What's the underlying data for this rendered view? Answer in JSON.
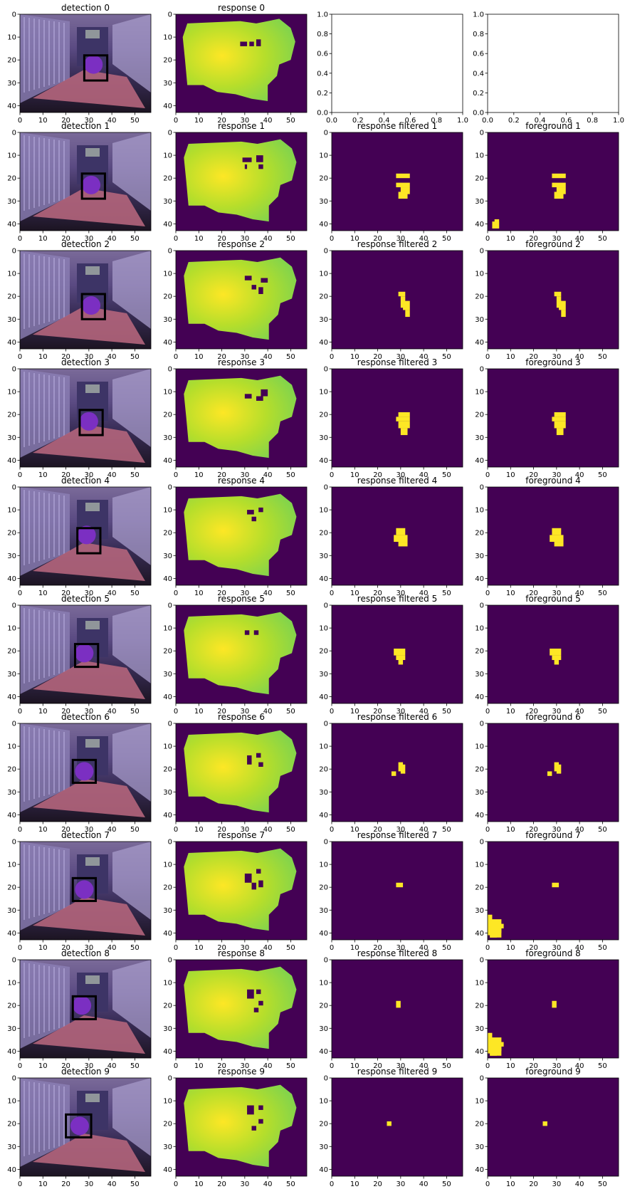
{
  "chart_data": {
    "type": "heatmap",
    "grid": {
      "rows": 10,
      "cols": 4
    },
    "image_axes": {
      "xlim": [
        0,
        57
      ],
      "ylim": [
        43,
        0
      ],
      "xticks": [
        0,
        10,
        20,
        30,
        40,
        50
      ],
      "yticks": [
        0,
        10,
        20,
        30,
        40
      ]
    },
    "empty_axes": {
      "xlim": [
        0,
        1
      ],
      "ylim": [
        0,
        1
      ],
      "xticks": [
        "0.0",
        "0.2",
        "0.4",
        "0.6",
        "0.8",
        "1.0"
      ],
      "yticks": [
        "0.0",
        "0.2",
        "0.4",
        "0.6",
        "0.8",
        "1.0"
      ]
    },
    "colors": {
      "background": "#440154",
      "foreground": "#fde725",
      "response_mid": "#b5de2b",
      "response_low": "#7fd34e",
      "box": "#000000",
      "ball": "#7b2fc2"
    },
    "panel_titles": {
      "detection": [
        "detection 0",
        "detection 1",
        "detection 2",
        "detection 3",
        "detection 4",
        "detection 5",
        "detection 6",
        "detection 7",
        "detection 8",
        "detection 9"
      ],
      "response": [
        "response 0",
        "response 1",
        "response 2",
        "response 3",
        "response 4",
        "response 5",
        "response 6",
        "response 7",
        "response 8",
        "response 9"
      ],
      "filtered": [
        "",
        "response filtered 1",
        "response filtered 2",
        "response filtered 3",
        "response filtered 4",
        "response filtered 5",
        "response filtered 6",
        "response filtered 7",
        "response filtered 8",
        "response filtered 9"
      ],
      "foreground": [
        "",
        "foreground  1",
        "foreground  2",
        "foreground  3",
        "foreground  4",
        "foreground  5",
        "foreground  6",
        "foreground  7",
        "foreground  8",
        "foreground  9"
      ]
    },
    "detection_boxes": [
      [
        28,
        18,
        38,
        29
      ],
      [
        27,
        18,
        37,
        29
      ],
      [
        27,
        19,
        37,
        30
      ],
      [
        26,
        18,
        36,
        29
      ],
      [
        25,
        18,
        35,
        29
      ],
      [
        24,
        17,
        34,
        27
      ],
      [
        23,
        16,
        33,
        26
      ],
      [
        23,
        16,
        33,
        26
      ],
      [
        23,
        16,
        33,
        26
      ],
      [
        20,
        16,
        31,
        26
      ]
    ],
    "ball_centers": [
      [
        32,
        22
      ],
      [
        31,
        23
      ],
      [
        31,
        24
      ],
      [
        30,
        23
      ],
      [
        29,
        21
      ],
      [
        28,
        21
      ],
      [
        28,
        21
      ],
      [
        28,
        21
      ],
      [
        27,
        20
      ],
      [
        26,
        21
      ]
    ],
    "foreground_blobs": [
      [],
      [
        [
          28,
          18,
          34,
          20
        ],
        [
          28,
          22,
          34,
          24
        ],
        [
          30,
          24,
          34,
          27
        ],
        [
          29,
          26,
          33,
          29
        ],
        [
          3,
          38,
          5,
          42
        ],
        [
          2,
          40,
          3,
          42
        ]
      ],
      [
        [
          29,
          18,
          32,
          20
        ],
        [
          30,
          20,
          32,
          25
        ],
        [
          31,
          22,
          34,
          26
        ],
        [
          32,
          26,
          34,
          29
        ]
      ],
      [
        [
          29,
          19,
          34,
          21
        ],
        [
          28,
          21,
          34,
          23
        ],
        [
          29,
          23,
          34,
          26
        ],
        [
          30,
          26,
          33,
          29
        ]
      ],
      [
        [
          28,
          18,
          32,
          21
        ],
        [
          27,
          21,
          33,
          24
        ],
        [
          29,
          24,
          33,
          26
        ]
      ],
      [
        [
          27,
          19,
          32,
          22
        ],
        [
          28,
          22,
          32,
          24
        ],
        [
          29,
          24,
          31,
          26
        ]
      ],
      [
        [
          29,
          17,
          31,
          21
        ],
        [
          30,
          18,
          32,
          22
        ],
        [
          26,
          21,
          28,
          23
        ]
      ],
      [
        [
          28,
          18,
          31,
          20
        ],
        [
          0,
          32,
          2,
          41
        ],
        [
          2,
          35,
          4,
          38
        ],
        [
          3,
          37,
          6,
          40
        ],
        [
          1,
          40,
          4,
          42
        ],
        [
          5,
          36,
          7,
          38
        ]
      ],
      [
        [
          28,
          18,
          30,
          21
        ],
        [
          0,
          32,
          2,
          41
        ],
        [
          2,
          35,
          4,
          38
        ],
        [
          3,
          37,
          6,
          40
        ],
        [
          1,
          40,
          4,
          42
        ],
        [
          5,
          36,
          7,
          38
        ]
      ],
      [
        [
          24,
          19,
          26,
          21
        ]
      ]
    ],
    "foreground_only_extra": [
      [],
      [
        [
          2,
          39,
          5,
          42
        ]
      ],
      [],
      [],
      [],
      [],
      [],
      [
        [
          1,
          34,
          6,
          42
        ]
      ],
      [
        [
          1,
          34,
          6,
          42
        ]
      ],
      []
    ],
    "response_holes": [
      [
        [
          28,
          12,
          31,
          14
        ],
        [
          32,
          12,
          34,
          14
        ],
        [
          35,
          11,
          37,
          14
        ]
      ],
      [
        [
          29,
          11,
          33,
          13
        ],
        [
          30,
          14,
          31,
          16
        ],
        [
          35,
          10,
          38,
          13
        ],
        [
          36,
          14,
          38,
          16
        ]
      ],
      [
        [
          30,
          11,
          33,
          13
        ],
        [
          33,
          15,
          35,
          17
        ],
        [
          37,
          12,
          40,
          14
        ],
        [
          36,
          16,
          38,
          19
        ]
      ],
      [
        [
          30,
          11,
          33,
          13
        ],
        [
          35,
          12,
          38,
          14
        ],
        [
          37,
          9,
          40,
          12
        ]
      ],
      [
        [
          31,
          10,
          34,
          12
        ],
        [
          36,
          9,
          38,
          11
        ],
        [
          33,
          13,
          35,
          15
        ]
      ],
      [
        [
          30,
          11,
          32,
          13
        ],
        [
          34,
          11,
          36,
          13
        ]
      ],
      [
        [
          31,
          14,
          33,
          18
        ],
        [
          35,
          13,
          37,
          15
        ],
        [
          36,
          17,
          38,
          19
        ]
      ],
      [
        [
          30,
          14,
          33,
          18
        ],
        [
          35,
          12,
          37,
          14
        ],
        [
          36,
          17,
          38,
          20
        ],
        [
          33,
          18,
          35,
          21
        ]
      ],
      [
        [
          31,
          13,
          34,
          17
        ],
        [
          35,
          13,
          37,
          15
        ],
        [
          36,
          18,
          38,
          20
        ],
        [
          34,
          21,
          36,
          23
        ]
      ],
      [
        [
          31,
          12,
          34,
          16
        ],
        [
          36,
          12,
          38,
          14
        ],
        [
          36,
          18,
          38,
          20
        ],
        [
          33,
          21,
          35,
          23
        ]
      ]
    ]
  }
}
